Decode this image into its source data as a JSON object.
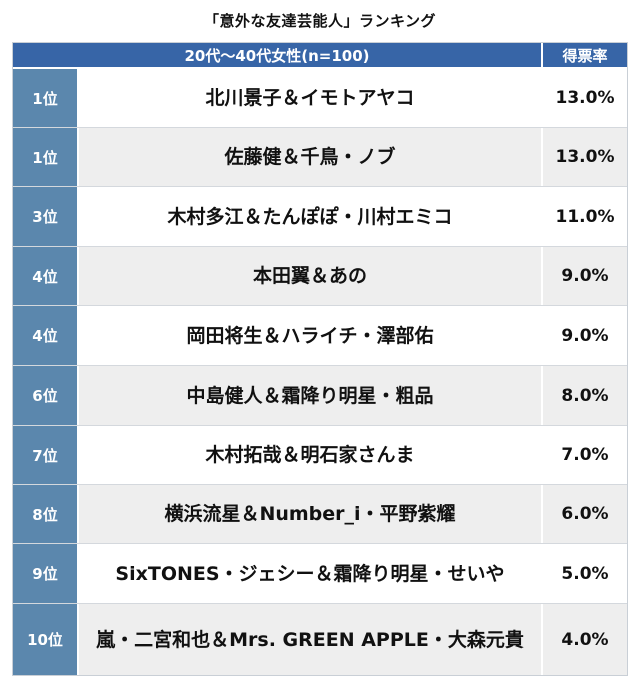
{
  "title": "「意外な友達芸能人」ランキング",
  "chart_data": {
    "type": "table",
    "header": {
      "group": "20代〜40代女性(n=100)",
      "rate": "得票率"
    },
    "rows": [
      {
        "rank": "1位",
        "name": "北川景子＆イモトアヤコ",
        "rate": "13.0%"
      },
      {
        "rank": "1位",
        "name": "佐藤健＆千鳥・ノブ",
        "rate": "13.0%"
      },
      {
        "rank": "3位",
        "name": "木村多江＆たんぽぽ・川村エミコ",
        "rate": "11.0%"
      },
      {
        "rank": "4位",
        "name": "本田翼＆あの",
        "rate": "9.0%"
      },
      {
        "rank": "4位",
        "name": "岡田将生＆ハライチ・澤部佑",
        "rate": "9.0%"
      },
      {
        "rank": "6位",
        "name": "中島健人＆霜降り明星・粗品",
        "rate": "8.0%"
      },
      {
        "rank": "7位",
        "name": "木村拓哉＆明石家さんま",
        "rate": "7.0%"
      },
      {
        "rank": "8位",
        "name": "横浜流星＆Number_i・平野紫耀",
        "rate": "6.0%"
      },
      {
        "rank": "9位",
        "name": "SixTONES・ジェシー＆霜降り明星・せいや",
        "rate": "5.0%"
      },
      {
        "rank": "10位",
        "name": "嵐・二宮和也＆Mrs. GREEN APPLE・大森元貴",
        "rate": "4.0%"
      }
    ]
  }
}
